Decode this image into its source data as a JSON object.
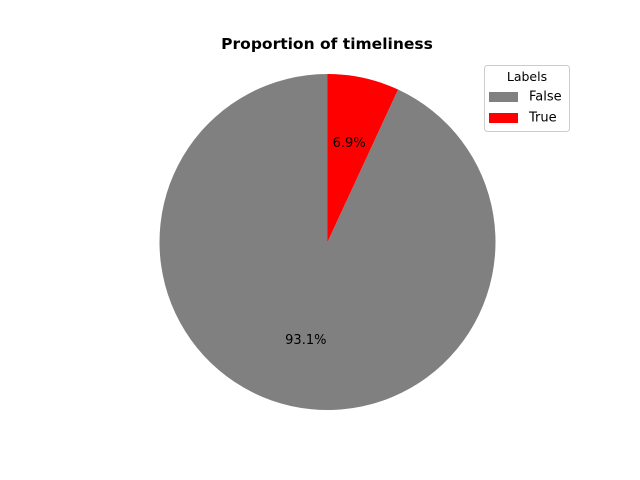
{
  "chart_data": {
    "type": "pie",
    "title": "Proportion of timeliness",
    "categories": [
      "False",
      "True"
    ],
    "values": [
      93.1,
      6.9
    ],
    "percent_labels": [
      "93.1%",
      "6.9%"
    ],
    "colors": [
      "#808080",
      "#ff0000"
    ],
    "start_angle_deg": 90,
    "direction": "counterclockwise",
    "legend": {
      "title": "Labels",
      "placement": "top-right",
      "entries": [
        "False",
        "True"
      ]
    }
  }
}
